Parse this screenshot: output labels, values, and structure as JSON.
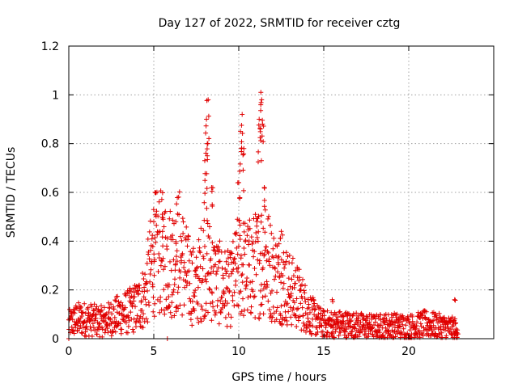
{
  "chart_data": {
    "type": "scatter",
    "title": "Day 127 of 2022, SRMTID for receiver cztg",
    "xlabel": "GPS time / hours",
    "ylabel": "SRMTID / TECUs",
    "xlim": [
      0,
      25
    ],
    "ylim": [
      0,
      1.2
    ],
    "xticks": [
      0,
      5,
      10,
      15,
      20
    ],
    "yticks": [
      0,
      0.2,
      0.4,
      0.6,
      0.8,
      1,
      1.2
    ],
    "ytick_labels": [
      "0",
      "0.2",
      "0.4",
      "0.6",
      "0.8",
      "1",
      "1.2"
    ],
    "grid": true,
    "marker": "+",
    "color": "#e00000",
    "series": [
      {
        "name": "cztg",
        "profile": [
          {
            "x": 0.0,
            "y": 0.06
          },
          {
            "x": 0.5,
            "y": 0.08
          },
          {
            "x": 1.0,
            "y": 0.08
          },
          {
            "x": 2.0,
            "y": 0.07
          },
          {
            "x": 3.0,
            "y": 0.1
          },
          {
            "x": 3.5,
            "y": 0.11
          },
          {
            "x": 4.0,
            "y": 0.13
          },
          {
            "x": 4.5,
            "y": 0.18
          },
          {
            "x": 5.0,
            "y": 0.35
          },
          {
            "x": 5.5,
            "y": 0.35
          },
          {
            "x": 6.0,
            "y": 0.32
          },
          {
            "x": 6.5,
            "y": 0.36
          },
          {
            "x": 7.0,
            "y": 0.25
          },
          {
            "x": 7.5,
            "y": 0.2
          },
          {
            "x": 8.0,
            "y": 0.33
          },
          {
            "x": 8.5,
            "y": 0.25
          },
          {
            "x": 9.0,
            "y": 0.22
          },
          {
            "x": 9.5,
            "y": 0.2
          },
          {
            "x": 10.0,
            "y": 0.3
          },
          {
            "x": 10.5,
            "y": 0.28
          },
          {
            "x": 11.0,
            "y": 0.3
          },
          {
            "x": 11.5,
            "y": 0.35
          },
          {
            "x": 12.0,
            "y": 0.26
          },
          {
            "x": 12.5,
            "y": 0.24
          },
          {
            "x": 13.0,
            "y": 0.2
          },
          {
            "x": 13.5,
            "y": 0.17
          },
          {
            "x": 14.0,
            "y": 0.12
          },
          {
            "x": 14.5,
            "y": 0.08
          },
          {
            "x": 15.0,
            "y": 0.06
          },
          {
            "x": 16.0,
            "y": 0.06
          },
          {
            "x": 17.0,
            "y": 0.055
          },
          {
            "x": 18.0,
            "y": 0.05
          },
          {
            "x": 19.0,
            "y": 0.055
          },
          {
            "x": 20.0,
            "y": 0.05
          },
          {
            "x": 21.0,
            "y": 0.06
          },
          {
            "x": 22.0,
            "y": 0.05
          },
          {
            "x": 22.9,
            "y": 0.04
          }
        ],
        "peaks": [
          {
            "x": 5.0,
            "y": 0.48
          },
          {
            "x": 5.5,
            "y": 0.51
          },
          {
            "x": 6.3,
            "y": 0.48
          },
          {
            "x": 8.0,
            "y": 0.73
          },
          {
            "x": 8.2,
            "y": 0.98
          },
          {
            "x": 8.1,
            "y": 0.9
          },
          {
            "x": 8.15,
            "y": 0.8
          },
          {
            "x": 8.4,
            "y": 0.62
          },
          {
            "x": 10.2,
            "y": 0.92
          },
          {
            "x": 10.1,
            "y": 0.85
          },
          {
            "x": 10.3,
            "y": 0.78
          },
          {
            "x": 10.0,
            "y": 0.64
          },
          {
            "x": 11.3,
            "y": 1.01
          },
          {
            "x": 11.35,
            "y": 0.98
          },
          {
            "x": 11.2,
            "y": 0.9
          },
          {
            "x": 11.4,
            "y": 0.88
          },
          {
            "x": 11.5,
            "y": 0.62
          },
          {
            "x": 12.5,
            "y": 0.44
          },
          {
            "x": 15.5,
            "y": 0.16
          },
          {
            "x": 22.7,
            "y": 0.16
          }
        ],
        "x_end": 22.9
      }
    ]
  }
}
